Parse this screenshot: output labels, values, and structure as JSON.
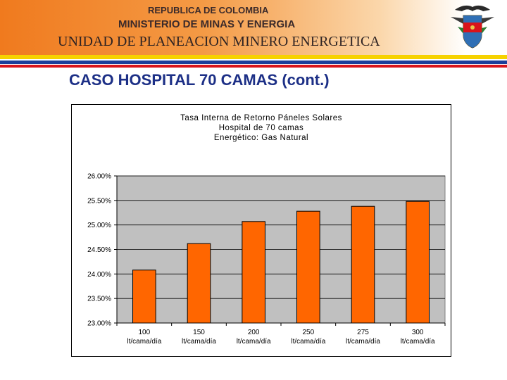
{
  "header": {
    "line1": "REPUBLICA DE COLOMBIA",
    "line2": "MINISTERIO DE MINAS Y ENERGIA",
    "line3": "UNIDAD DE PLANEACION MINERO ENERGETICA",
    "crest_icon": "colombia-coat-of-arms-icon"
  },
  "colors": {
    "banner_orange": "#f07a1e",
    "flag_yellow": "#f6d200",
    "flag_blue": "#1b3e9a",
    "flag_red": "#d9141b",
    "title_blue": "#1c2f86",
    "bar_fill": "#ff6600",
    "plot_bg": "#c0c0c0"
  },
  "slide": {
    "title": "CASO HOSPITAL 70 CAMAS (cont.)"
  },
  "chart_data": {
    "type": "bar",
    "title_lines": [
      "Tasa Interna de Retorno Páneles Solares",
      "Hospital de 70 camas",
      "Energético: Gas Natural"
    ],
    "categories": [
      [
        "100",
        "lt/cama/día"
      ],
      [
        "150",
        "lt/cama/día"
      ],
      [
        "200",
        "lt/cama/día"
      ],
      [
        "250",
        "lt/cama/día"
      ],
      [
        "275",
        "lt/cama/día"
      ],
      [
        "300",
        "lt/cama/día"
      ]
    ],
    "values": [
      24.08,
      24.62,
      25.07,
      25.28,
      25.38,
      25.48
    ],
    "ylim": [
      23.0,
      26.0
    ],
    "yticks": [
      "23.00%",
      "23.50%",
      "24.00%",
      "24.50%",
      "25.00%",
      "25.50%",
      "26.00%"
    ],
    "grid": true,
    "legend": "none"
  }
}
